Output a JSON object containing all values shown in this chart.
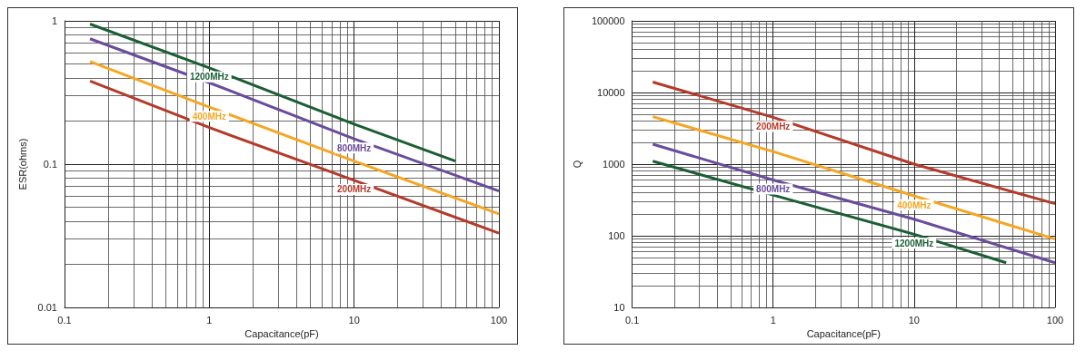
{
  "chart_data": [
    {
      "type": "line",
      "xlabel": "Capacitance(pF)",
      "ylabel": "ESR(ohms)",
      "log": "xy",
      "grid": true,
      "legend": false,
      "marker": "none",
      "line_style": "solid",
      "xlim": [
        0.1,
        100
      ],
      "xticks": [
        0.1,
        1,
        10,
        100
      ],
      "ylim": [
        0.01,
        1
      ],
      "yticks": [
        0.01,
        0.1,
        1
      ],
      "series": [
        {
          "name": "1200MHz",
          "color": "#1b5e34",
          "x": [
            0.15,
            1,
            10,
            50
          ],
          "values": [
            0.95,
            0.47,
            0.19,
            0.105
          ]
        },
        {
          "name": "800MHz",
          "color": "#6a4c9c",
          "x": [
            0.15,
            1,
            10,
            100
          ],
          "values": [
            0.75,
            0.37,
            0.15,
            0.065
          ]
        },
        {
          "name": "400MHz",
          "color": "#f5a623",
          "x": [
            0.15,
            1,
            10,
            100
          ],
          "values": [
            0.52,
            0.25,
            0.105,
            0.045
          ]
        },
        {
          "name": "200MHz",
          "color": "#b53a2a",
          "x": [
            0.15,
            1,
            10,
            100
          ],
          "values": [
            0.38,
            0.18,
            0.077,
            0.033
          ]
        }
      ]
    },
    {
      "type": "line",
      "xlabel": "Capacitance(pF)",
      "ylabel": "Q",
      "log": "xy",
      "grid": true,
      "legend": false,
      "marker": "none",
      "line_style": "solid",
      "xlim": [
        0.1,
        100
      ],
      "xticks": [
        0.1,
        1,
        10,
        100
      ],
      "ylim": [
        10,
        100000
      ],
      "yticks": [
        10,
        100,
        1000,
        10000,
        100000
      ],
      "series": [
        {
          "name": "200MHz",
          "color": "#b53a2a",
          "x": [
            0.14,
            1,
            10,
            100
          ],
          "values": [
            14000,
            4500,
            1000,
            280
          ]
        },
        {
          "name": "400MHz",
          "color": "#f5a623",
          "x": [
            0.14,
            1,
            10,
            100
          ],
          "values": [
            4600,
            1500,
            360,
            90
          ]
        },
        {
          "name": "800MHz",
          "color": "#6a4c9c",
          "x": [
            0.14,
            1,
            10,
            100
          ],
          "values": [
            1900,
            600,
            170,
            42
          ]
        },
        {
          "name": "1200MHz",
          "color": "#1b5e34",
          "x": [
            0.14,
            1,
            10,
            45
          ],
          "values": [
            1100,
            370,
            105,
            42
          ]
        }
      ]
    }
  ]
}
